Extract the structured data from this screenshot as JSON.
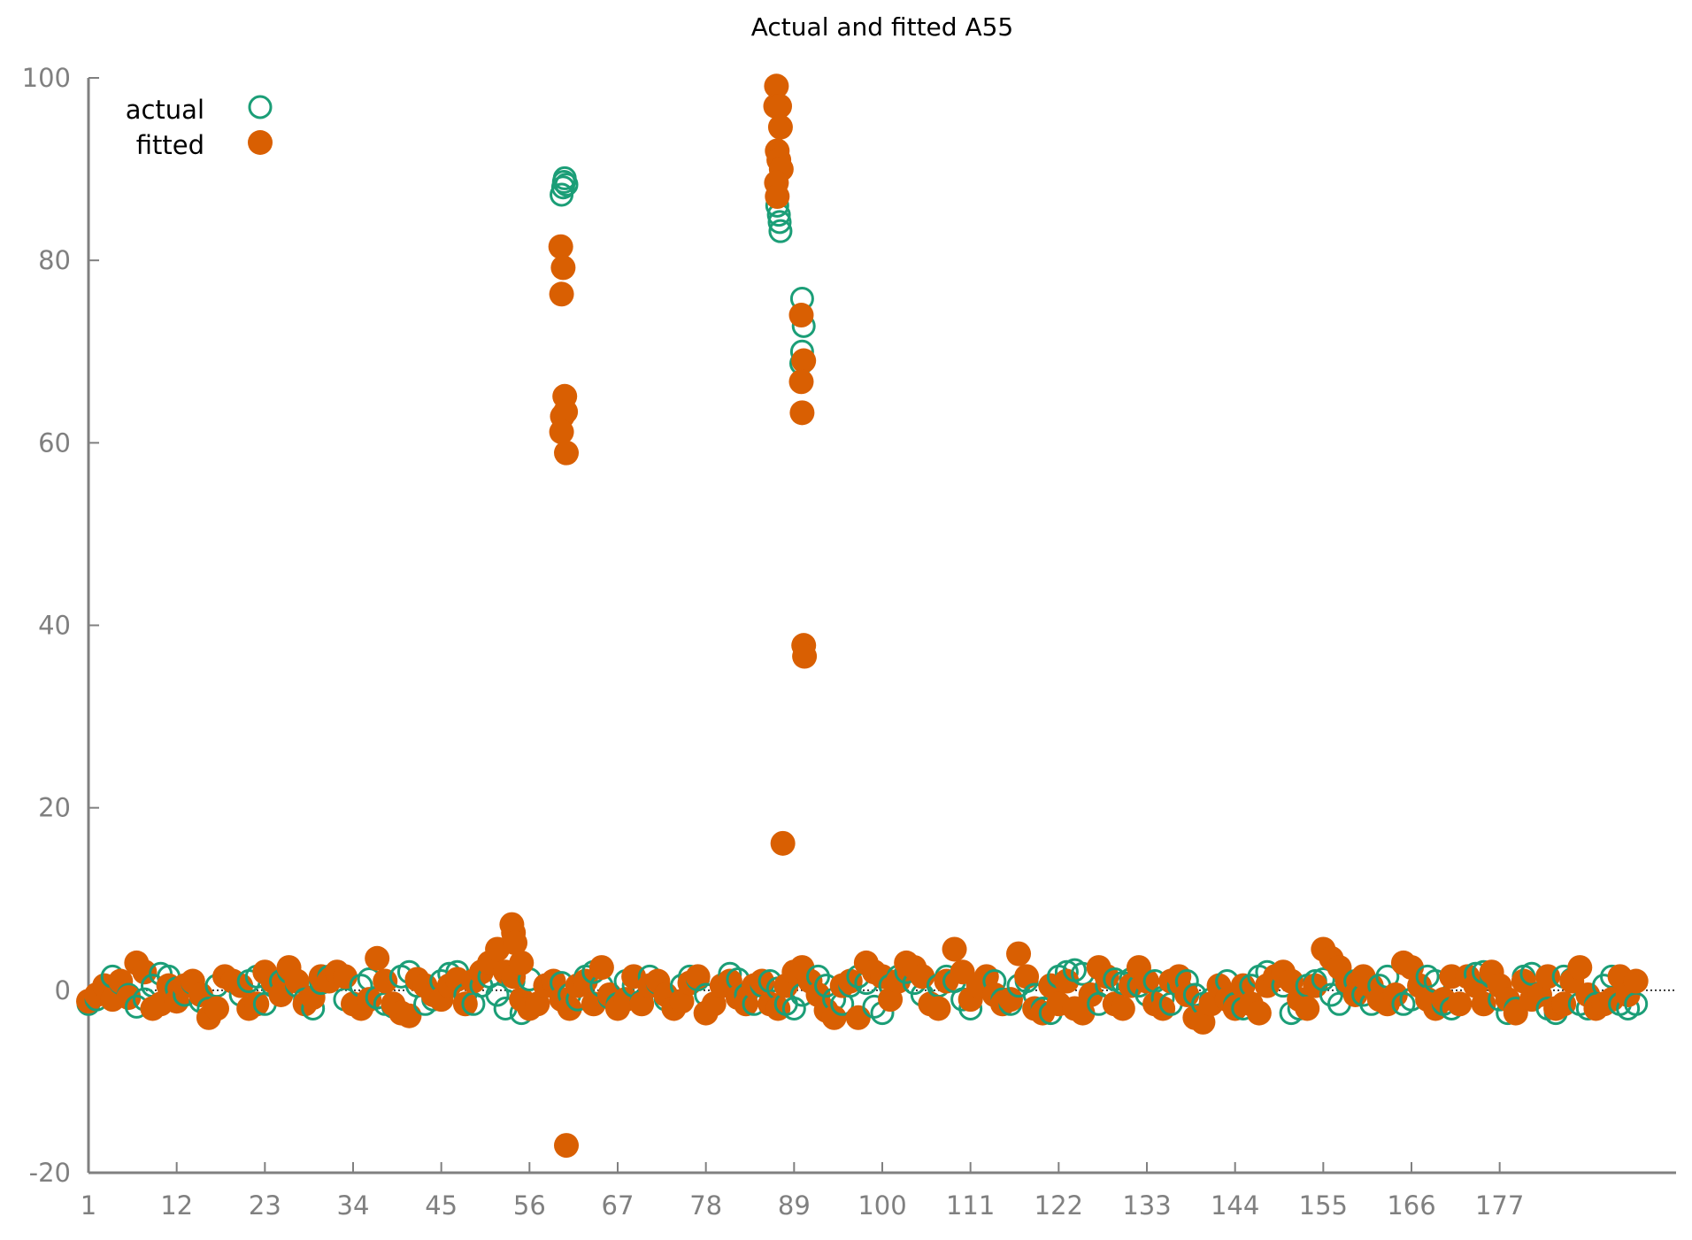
{
  "chart_data": {
    "type": "scatter",
    "title": "Actual and fitted A55",
    "xlabel": "",
    "ylabel": "",
    "xlim": [
      1,
      199
    ],
    "ylim": [
      -20,
      100
    ],
    "x_ticks": [
      1,
      12,
      23,
      34,
      45,
      56,
      67,
      78,
      89,
      100,
      111,
      122,
      133,
      144,
      155,
      166,
      177
    ],
    "y_ticks": [
      -20,
      0,
      20,
      40,
      60,
      80,
      100
    ],
    "zero_line": true,
    "legend_position": "top-left",
    "colors": {
      "actual": "#1b9e77",
      "fitted": "#d95f02",
      "axis": "#808080"
    },
    "series": [
      {
        "name": "actual",
        "marker": "open-circle",
        "values": [
          -1.5,
          -1,
          0.5,
          1.5,
          0.8,
          -0.5,
          -1.8,
          -1,
          0.5,
          1.8,
          1.5,
          0.2,
          -0.5,
          0.8,
          -1.2,
          -2,
          0.5,
          1.5,
          1,
          -0.5,
          1,
          1.5,
          -1.5,
          0.5,
          1,
          2,
          0.5,
          -1,
          -2,
          0.8,
          1.5,
          2,
          -1,
          -1.5,
          0.5,
          1.2,
          -0.8,
          -1.5,
          -1.8,
          1.5,
          2,
          0.5,
          -1.5,
          -1,
          1,
          1.8,
          2,
          -0.5,
          -1.5,
          0.5,
          1.5,
          -0.5,
          -2,
          1,
          -2.5,
          1.2,
          -1.5,
          0.5,
          1,
          0.8,
          -0.5,
          -1,
          1.5,
          2,
          0.5,
          -0.8,
          -1.5,
          1,
          0.5,
          -1.2,
          1.5,
          0.8,
          -1,
          -2,
          0.5,
          1.5,
          1.2,
          -0.5,
          -1.5,
          0.5,
          1.8,
          1.2,
          -0.5,
          -1.5,
          0.5,
          1,
          0.2,
          -1.5,
          -2,
          -0.5,
          1,
          1.5,
          0.5,
          -1,
          -1.5,
          0.5,
          1.5,
          0.8,
          -1.8,
          -2.5,
          0.5,
          1.5,
          2,
          0.8,
          -0.5,
          -1.5,
          0.5,
          1.5,
          1,
          -1,
          -2,
          0.5,
          1.5,
          1,
          -1,
          -1.5,
          0.5,
          1,
          -0.5,
          -2,
          -2.5,
          1.5,
          2,
          2.2,
          1.8,
          -0.5,
          -1.5,
          0.5,
          1.2,
          0.8,
          1.2,
          0.5,
          -0.5,
          1,
          -0.8,
          -1.5,
          0.5,
          1,
          -0.5,
          -1.5,
          -1,
          0.5,
          1,
          -1.5,
          -2,
          0.5,
          1.5,
          2,
          1.5,
          0.5,
          -2.5,
          -2,
          0.5,
          1,
          1.2,
          -0.5,
          -1.5,
          0.5,
          1,
          -0.5,
          -1.5,
          0.5,
          1.5,
          -0.5,
          -1.5,
          -1,
          0.5,
          1.5,
          1,
          -1.5,
          -2,
          -1.5,
          1.5,
          1.8,
          2,
          1.5,
          -1,
          -2.5,
          -2,
          1.5,
          1.8,
          -0.5,
          -2,
          -2.5,
          1.5,
          1.2,
          -1.5,
          -2,
          -1.5,
          0.5,
          1.5,
          -1.5,
          -2,
          -1.5
        ],
        "extra_points": [
          [
            60.0,
            87.2
          ],
          [
            60.2,
            88
          ],
          [
            60.3,
            88.6
          ],
          [
            60.4,
            89
          ],
          [
            60.6,
            88.3
          ],
          [
            86.9,
            86
          ],
          [
            87.1,
            85
          ],
          [
            87.2,
            84.2
          ],
          [
            87.3,
            83.2
          ],
          [
            90.0,
            75.8
          ],
          [
            90.2,
            72.8
          ],
          [
            90.0,
            70
          ],
          [
            89.9,
            68.7
          ]
        ]
      },
      {
        "name": "fitted",
        "marker": "filled-circle",
        "values": [
          -1.2,
          -0.5,
          0.5,
          -1,
          1,
          -0.8,
          3,
          2,
          -2,
          -1.5,
          0.5,
          -1.2,
          0.5,
          1,
          -0.5,
          -3,
          -2,
          1.5,
          1,
          0.5,
          -2,
          -1.5,
          2,
          1,
          -0.5,
          2.5,
          1,
          -1.5,
          -0.8,
          1.5,
          1,
          2,
          1.5,
          -1.5,
          -2,
          -1,
          3.5,
          1,
          -1.5,
          -2.5,
          -2.8,
          1.2,
          0.5,
          -0.5,
          -1,
          0.5,
          1.2,
          -1.5,
          1,
          2,
          3,
          4.5,
          2,
          1.5,
          -1,
          -2,
          -1.5,
          0.5,
          1,
          -1,
          -2,
          0.5,
          1,
          -1.5,
          2.5,
          -0.5,
          -2,
          -1,
          1.5,
          -1.5,
          0.5,
          1,
          -0.5,
          -2,
          -1.2,
          0.8,
          1.5,
          -2.5,
          -1.5,
          0.5,
          1,
          -0.8,
          -1.5,
          0.5,
          1,
          -1.5,
          -2,
          0.5,
          2,
          2.5,
          1,
          -0.5,
          -2.2,
          -3,
          0.5,
          1,
          -3,
          3,
          2,
          1.5,
          -1,
          1,
          3,
          2.5,
          1.5,
          -1.5,
          -2,
          1,
          4.5,
          2,
          -1,
          0.5,
          1.5,
          -0.5,
          -1.5,
          -1,
          4,
          1.5,
          -2,
          -2.5,
          0.5,
          -1.5,
          1,
          -2,
          -2.5,
          -0.5,
          2.5,
          1.5,
          -1.5,
          -2,
          0.5,
          2.5,
          1,
          -1.5,
          -2,
          1,
          1.5,
          -0.5,
          -3,
          -3.5,
          -1.5,
          0.5,
          -1,
          -2,
          0.5,
          -1.5,
          -2.5,
          0.5,
          1.5,
          2,
          1,
          -1,
          -2,
          0.5,
          4.5,
          3.5,
          2.5,
          1,
          -0.5,
          1.5,
          0.5,
          -1,
          -1.5,
          -0.5,
          3,
          2.5,
          0.5,
          -1,
          -2,
          -1,
          1.5,
          -1.5,
          1.5,
          0.5,
          -1.5,
          2,
          0.5,
          -1,
          -2.5,
          1,
          -1,
          -0.5,
          1.5,
          -2,
          -1.5,
          1,
          2.5,
          -0.5,
          -2,
          -1.5,
          -1,
          1.5,
          -0.5,
          1
        ],
        "extra_points": [
          [
            53.8,
            7.2
          ],
          [
            54.0,
            6.3
          ],
          [
            54.2,
            5.2
          ],
          [
            55.0,
            3.0
          ],
          [
            59.9,
            81.5
          ],
          [
            60.2,
            79.2
          ],
          [
            60.0,
            76.3
          ],
          [
            60.4,
            65.1
          ],
          [
            60.1,
            62.9
          ],
          [
            60.5,
            63.4
          ],
          [
            60.0,
            61.2
          ],
          [
            60.6,
            58.9
          ],
          [
            60.6,
            -17
          ],
          [
            86.8,
            99.1
          ],
          [
            86.7,
            96.9
          ],
          [
            87.2,
            96.9
          ],
          [
            87.3,
            94.6
          ],
          [
            86.9,
            92
          ],
          [
            87.1,
            91
          ],
          [
            87.4,
            90
          ],
          [
            86.8,
            88.5
          ],
          [
            86.9,
            87
          ],
          [
            87.6,
            16.1
          ],
          [
            89.9,
            74
          ],
          [
            90.2,
            69
          ],
          [
            89.9,
            66.7
          ],
          [
            90.0,
            63.3
          ],
          [
            90.2,
            37.8
          ],
          [
            90.3,
            36.6
          ]
        ]
      }
    ]
  },
  "legend": {
    "actual_label": "actual",
    "fitted_label": "fitted"
  }
}
